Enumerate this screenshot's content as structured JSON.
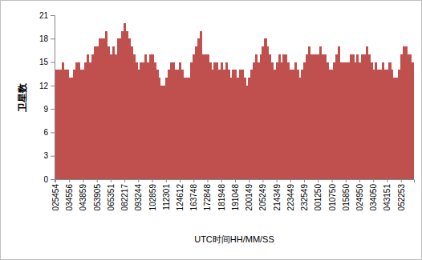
{
  "chart_data": {
    "type": "bar",
    "x_label": "UTC时间HH/MM/SS",
    "y_label": "卫星数",
    "categories": [
      "025454",
      null,
      null,
      null,
      null,
      null,
      "034556",
      null,
      null,
      null,
      null,
      null,
      "043859",
      null,
      null,
      null,
      null,
      null,
      "053905",
      null,
      null,
      null,
      null,
      null,
      "065351",
      null,
      null,
      null,
      null,
      null,
      "082217",
      null,
      null,
      null,
      null,
      null,
      "093244",
      null,
      null,
      null,
      null,
      null,
      "102859",
      null,
      null,
      null,
      null,
      null,
      "112301",
      null,
      null,
      null,
      null,
      null,
      "124612",
      null,
      null,
      null,
      null,
      null,
      "163748",
      null,
      null,
      null,
      null,
      null,
      "172848",
      null,
      null,
      null,
      null,
      null,
      "181948",
      null,
      null,
      null,
      null,
      null,
      "191048",
      null,
      null,
      null,
      null,
      null,
      "200149",
      null,
      null,
      null,
      null,
      null,
      "205249",
      null,
      null,
      null,
      null,
      null,
      "214349",
      null,
      null,
      null,
      null,
      null,
      "223449",
      null,
      null,
      null,
      null,
      null,
      "232549",
      null,
      null,
      null,
      null,
      null,
      "001250",
      null,
      null,
      null,
      null,
      null,
      "010750",
      null,
      null,
      null,
      null,
      null,
      "015850",
      null,
      null,
      null,
      null,
      null,
      "024950",
      null,
      null,
      null,
      null,
      null,
      "034050",
      null,
      null,
      null,
      null,
      null,
      "043151",
      null,
      null,
      null,
      null,
      null,
      "052253",
      null,
      null,
      null,
      null,
      null
    ],
    "values": [
      14,
      14,
      14,
      15,
      14,
      14,
      13,
      13,
      14,
      15,
      15,
      14,
      14,
      15,
      16,
      15,
      16,
      17,
      17,
      18,
      18,
      18,
      19,
      17,
      16,
      17,
      16,
      18,
      18,
      19,
      20,
      19,
      18,
      17,
      16,
      15,
      14,
      15,
      15,
      16,
      15,
      16,
      16,
      15,
      14,
      13,
      12,
      12,
      13,
      14,
      15,
      15,
      14,
      14,
      15,
      14,
      13,
      13,
      13,
      15,
      16,
      17,
      18,
      19,
      16,
      16,
      16,
      15,
      14,
      15,
      15,
      14,
      15,
      14,
      15,
      14,
      13,
      14,
      14,
      13,
      14,
      14,
      13,
      12,
      13,
      14,
      15,
      16,
      15,
      16,
      17,
      18,
      17,
      16,
      15,
      14,
      15,
      16,
      15,
      16,
      16,
      15,
      14,
      14,
      15,
      14,
      13,
      14,
      15,
      16,
      17,
      16,
      16,
      16,
      16,
      17,
      16,
      16,
      15,
      14,
      14,
      15,
      16,
      17,
      15,
      15,
      15,
      15,
      16,
      16,
      15,
      16,
      15,
      16,
      16,
      17,
      16,
      15,
      14,
      15,
      14,
      14,
      15,
      14,
      14,
      15,
      14,
      13,
      13,
      14,
      16,
      17,
      17,
      16,
      16,
      15
    ],
    "color": "#c0504d",
    "ylim": [
      0,
      21
    ],
    "yticks": [
      0,
      3,
      6,
      9,
      12,
      15,
      18,
      21
    ],
    "grid": false
  }
}
